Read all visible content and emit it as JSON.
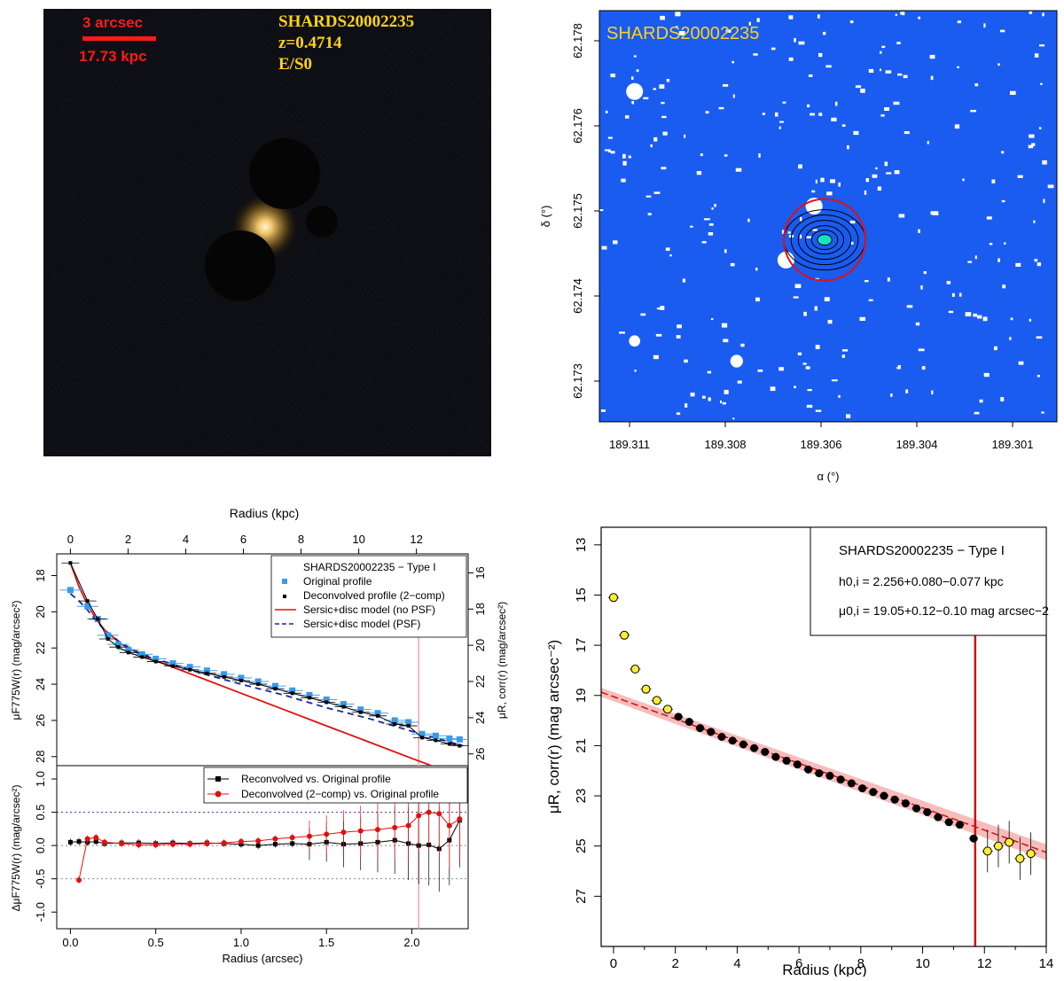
{
  "image_panel": {
    "scale_arcsec": "3 arcsec",
    "scale_kpc": "17.73 kpc",
    "object_id": "SHARDS20002235",
    "redshift": "z=0.4714",
    "morphology": "E/S0",
    "scale_color": "#ff1a1a",
    "label_color": "#ffd21a"
  },
  "chart_data": [
    {
      "type": "scatter",
      "panel": "mask-map",
      "title": "SHARDS20002235",
      "xlabel": "α (°)",
      "ylabel": "δ (°)",
      "xticks": [
        "189.311",
        "189.308",
        "189.306",
        "189.304",
        "189.301"
      ],
      "yticks": [
        "62.178",
        "62.176",
        "62.175",
        "62.174",
        "62.173"
      ],
      "masks": [
        {
          "ra": 189.3115,
          "dec": 62.1773,
          "r": 0.00024
        },
        {
          "ra": 189.3064,
          "dec": 62.1756,
          "r": 0.00024
        },
        {
          "ra": 189.3072,
          "dec": 62.1748,
          "r": 0.00024
        },
        {
          "ra": 189.3115,
          "dec": 62.1736,
          "r": 0.00016
        },
        {
          "ra": 189.3086,
          "dec": 62.1733,
          "r": 0.00018
        }
      ],
      "aperture": {
        "ra": 189.3061,
        "dec": 62.1751
      },
      "background_color": "#1a5cf0"
    },
    {
      "type": "line",
      "panel": "surface-brightness-profile",
      "top_xlabel": "Radius (kpc)",
      "xlabel": "Radius (arcsec)",
      "ylabel_left": "μF775W(r) (mag/arcsec²)",
      "ylabel_right": "μR, corr(r) (mag/arcsec²)",
      "ylabel_residual": "ΔμF775W(r) (mag/arcsec²)",
      "xlim": [
        -0.08,
        2.33
      ],
      "ylim_top": [
        28.5,
        16.8
      ],
      "ylim_residual": [
        -1.25,
        1.2
      ],
      "top_xticks": [
        "0",
        "2",
        "4",
        "6",
        "8",
        "10",
        "12"
      ],
      "xticks": [
        "0.0",
        "0.5",
        "1.0",
        "1.5",
        "2.0"
      ],
      "yticks_left": [
        "18",
        "20",
        "22",
        "24",
        "26",
        "28"
      ],
      "yticks_right": [
        "16",
        "18",
        "20",
        "22",
        "24",
        "26"
      ],
      "yticks_residual": [
        "1.0",
        "0.5",
        "0.0",
        "-0.5",
        "-1.0"
      ],
      "break_radius": 2.04,
      "legend_top": {
        "title": "SHARDS20002235  − Type I",
        "entries": [
          "Original profile",
          "Deconvolved profile (2−comp)",
          "Sersic+disc model (no PSF)",
          "Sersic+disc model (PSF)"
        ]
      },
      "legend_residual": {
        "entries": [
          "Reconvolved vs. Original profile",
          "Deconvolved (2−comp) vs. Original profile"
        ]
      },
      "original": {
        "x": [
          0.0,
          0.1,
          0.16,
          0.22,
          0.28,
          0.34,
          0.42,
          0.5,
          0.6,
          0.7,
          0.8,
          0.9,
          1.0,
          1.1,
          1.2,
          1.3,
          1.4,
          1.5,
          1.6,
          1.7,
          1.8,
          1.9,
          1.98,
          2.06,
          2.14,
          2.22,
          2.28
        ],
        "y": [
          18.8,
          19.7,
          20.4,
          21.3,
          21.8,
          22.1,
          22.35,
          22.6,
          22.85,
          23.05,
          23.25,
          23.45,
          23.65,
          23.85,
          24.1,
          24.35,
          24.6,
          24.85,
          25.1,
          25.4,
          25.6,
          26.0,
          26.1,
          26.75,
          26.85,
          27.0,
          27.05
        ]
      },
      "deconvolved": {
        "x": [
          0.0,
          0.1,
          0.16,
          0.22,
          0.28,
          0.34,
          0.42,
          0.5,
          0.6,
          0.7,
          0.8,
          0.9,
          1.0,
          1.1,
          1.2,
          1.3,
          1.4,
          1.5,
          1.6,
          1.7,
          1.8,
          1.9,
          1.98,
          2.06,
          2.14,
          2.22,
          2.28
        ],
        "y": [
          17.3,
          19.4,
          20.4,
          21.5,
          21.95,
          22.25,
          22.5,
          22.75,
          23.0,
          23.2,
          23.4,
          23.6,
          23.8,
          24.0,
          24.25,
          24.5,
          24.75,
          25.0,
          25.25,
          25.55,
          25.75,
          26.2,
          26.3,
          26.95,
          27.1,
          27.3,
          27.4
        ]
      },
      "model_no_psf": {
        "x": [
          0.0,
          0.05,
          0.1,
          0.15,
          0.2,
          0.3,
          0.4,
          0.5,
          0.75,
          1.0,
          1.25,
          1.5,
          1.75,
          2.0,
          2.2
        ],
        "y": [
          17.3,
          18.6,
          19.6,
          20.4,
          21.0,
          21.8,
          22.3,
          22.7,
          23.6,
          24.5,
          25.4,
          26.3,
          27.2,
          28.1,
          28.8
        ]
      },
      "model_psf": {
        "x": [
          0.0,
          0.05,
          0.1,
          0.15,
          0.2,
          0.3,
          0.4,
          0.5,
          0.75,
          1.0,
          1.25,
          1.5,
          1.75,
          2.0,
          2.3
        ],
        "y": [
          19.0,
          19.4,
          19.9,
          20.5,
          21.0,
          21.75,
          22.25,
          22.6,
          23.35,
          24.0,
          24.6,
          25.3,
          25.9,
          26.6,
          27.4
        ]
      },
      "residual_reconvolved": {
        "x": [
          0.0,
          0.05,
          0.1,
          0.15,
          0.2,
          0.3,
          0.4,
          0.5,
          0.6,
          0.7,
          0.8,
          0.9,
          1.0,
          1.1,
          1.2,
          1.3,
          1.4,
          1.5,
          1.6,
          1.7,
          1.8,
          1.9,
          1.98,
          2.04,
          2.1,
          2.16,
          2.22,
          2.28
        ],
        "y": [
          0.05,
          0.06,
          0.05,
          0.06,
          0.03,
          0.04,
          0.04,
          0.03,
          0.04,
          0.03,
          0.04,
          0.03,
          0.02,
          0.0,
          0.02,
          0.03,
          0.02,
          0.05,
          0.02,
          0.03,
          0.05,
          0.08,
          0.03,
          0.0,
          0.01,
          -0.05,
          0.08,
          0.38
        ]
      },
      "residual_deconvolved": {
        "x": [
          0.05,
          0.1,
          0.15,
          0.2,
          0.3,
          0.4,
          0.5,
          0.6,
          0.7,
          0.8,
          0.9,
          1.0,
          1.1,
          1.2,
          1.3,
          1.4,
          1.5,
          1.6,
          1.7,
          1.8,
          1.9,
          1.98,
          2.04,
          2.1,
          2.16,
          2.22,
          2.28
        ],
        "y": [
          -0.52,
          0.1,
          0.12,
          0.05,
          0.03,
          0.01,
          0.01,
          0.02,
          0.02,
          0.03,
          0.04,
          0.06,
          0.07,
          0.1,
          0.12,
          0.14,
          0.17,
          0.2,
          0.22,
          0.24,
          0.27,
          0.3,
          0.45,
          0.5,
          0.48,
          0.3,
          0.4
        ]
      }
    },
    {
      "type": "scatter",
      "panel": "corrected-profile",
      "xlabel": "Radius (kpc)",
      "ylabel": "μR, corr(r) (mag arcsec⁻²)",
      "xlim": [
        -0.4,
        14.0
      ],
      "ylim": [
        29.0,
        12.3
      ],
      "xticks": [
        "0",
        "2",
        "4",
        "6",
        "8",
        "10",
        "12",
        "14"
      ],
      "yticks": [
        "13",
        "15",
        "17",
        "19",
        "21",
        "23",
        "25",
        "27"
      ],
      "break_radius": 11.7,
      "legend": {
        "title": "SHARDS20002235  − Type I",
        "h0": "h0,i = 2.256+0.080−0.077 kpc",
        "mu0": "μ0,i = 19.05+0.12−0.10 mag arcsec−2"
      },
      "fit": {
        "x": [
          -0.4,
          14.0
        ],
        "y": [
          18.87,
          25.25
        ]
      },
      "yellow_points": {
        "x": [
          0.0,
          0.35,
          0.7,
          1.05,
          1.4,
          1.75,
          12.1,
          12.45,
          12.8,
          13.15,
          13.5
        ],
        "y": [
          15.1,
          16.6,
          17.95,
          18.75,
          19.2,
          19.55,
          25.2,
          25.0,
          24.85,
          25.5,
          25.3
        ]
      },
      "black_points": {
        "x": [
          2.1,
          2.45,
          2.8,
          3.15,
          3.5,
          3.85,
          4.2,
          4.55,
          4.9,
          5.25,
          5.6,
          5.95,
          6.3,
          6.65,
          7.0,
          7.35,
          7.7,
          8.05,
          8.4,
          8.75,
          9.1,
          9.45,
          9.8,
          10.15,
          10.5,
          10.85,
          11.2,
          11.65
        ],
        "y": [
          19.85,
          20.05,
          20.3,
          20.45,
          20.65,
          20.8,
          20.95,
          21.1,
          21.25,
          21.45,
          21.6,
          21.75,
          21.95,
          22.1,
          22.2,
          22.35,
          22.5,
          22.7,
          22.85,
          23.0,
          23.15,
          23.3,
          23.5,
          23.65,
          23.85,
          24.05,
          24.15,
          24.7
        ]
      }
    }
  ]
}
